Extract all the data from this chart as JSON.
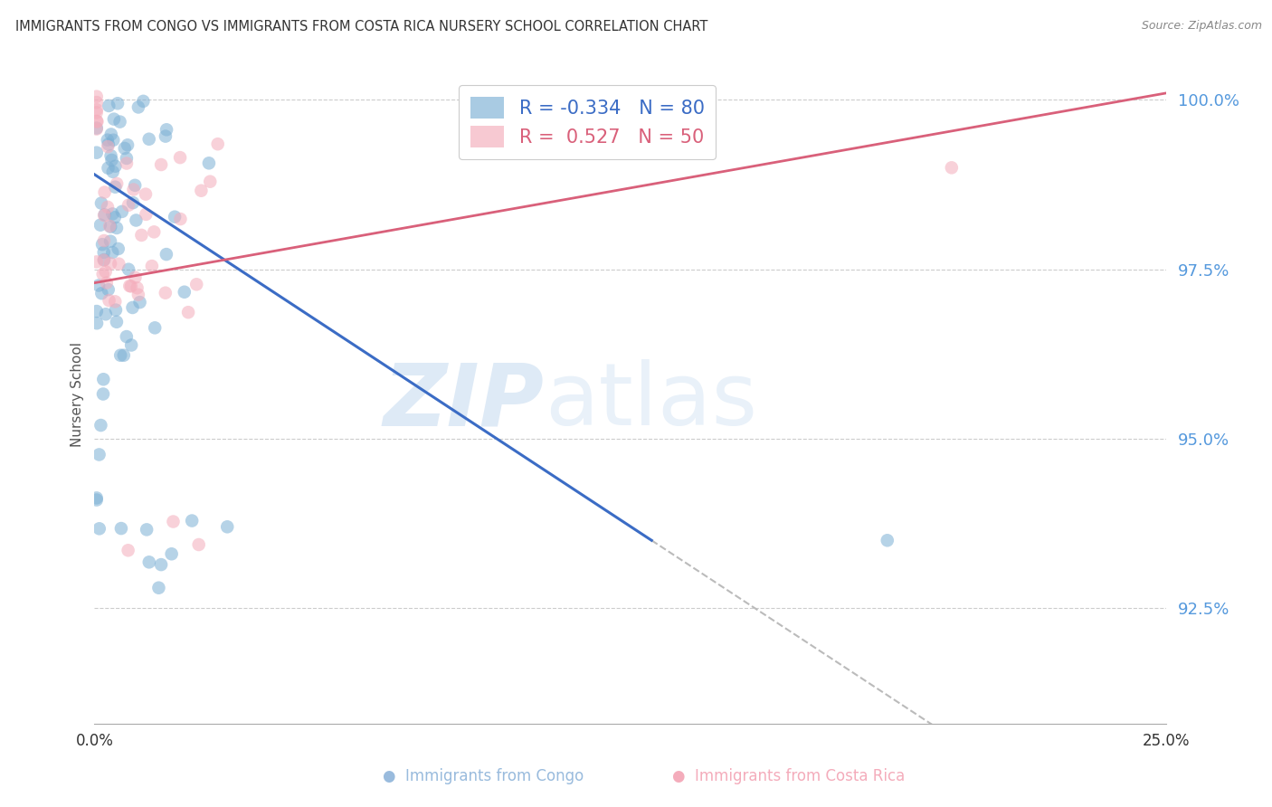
{
  "title": "IMMIGRANTS FROM CONGO VS IMMIGRANTS FROM COSTA RICA NURSERY SCHOOL CORRELATION CHART",
  "source": "Source: ZipAtlas.com",
  "ylabel": "Nursery School",
  "ytick_vals": [
    1.0,
    0.975,
    0.95,
    0.925
  ],
  "ytick_labels": [
    "100.0%",
    "97.5%",
    "95.0%",
    "92.5%"
  ],
  "xlim": [
    0.0,
    0.25
  ],
  "ylim": [
    0.908,
    1.005
  ],
  "r_congo": -0.334,
  "r_costa_rica": 0.527,
  "n_congo": 80,
  "n_costa_rica": 50,
  "color_congo": "#7BAFD4",
  "color_costa_rica": "#F4ACBB",
  "trendline_congo_color": "#3B6CC5",
  "trendline_cr_color": "#D9607A",
  "trendline_dashed_color": "#BBBBBB",
  "background_color": "#FFFFFF",
  "tick_color": "#5599DD",
  "legend_box_color": "#DDDDDD",
  "title_color": "#333333",
  "source_color": "#888888",
  "ylabel_color": "#555555",
  "watermark_zip_color": "#C8DCF0",
  "watermark_atlas_color": "#C8DCF0",
  "bottom_legend_color_congo": "#99BBDD",
  "bottom_legend_color_cr": "#F4ACBB"
}
